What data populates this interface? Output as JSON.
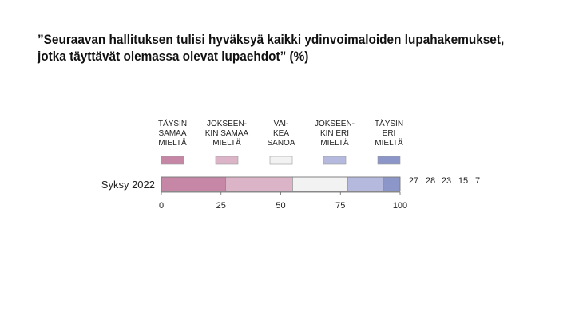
{
  "title_lines": [
    "”Seuraavan hallituksen tulisi hyväksyä kaikki ydinvoimaloiden lupahakemukset,",
    "jotka täyttävät olemassa olevat lupaehdot” (%)"
  ],
  "chart_data": {
    "type": "bar",
    "orientation": "horizontal",
    "stacked": true,
    "title": "”Seuraavan hallituksen tulisi hyväksyä kaikki ydinvoimaloiden lupahakemukset, jotka täyttävät olemassa olevat lupaehdot” (%)",
    "categories": [
      "Syksy 2022"
    ],
    "series": [
      {
        "name": "TÄYSIN SAMAA MIELTÄ",
        "label_lines": [
          "TÄYSIN",
          "SAMAA",
          "MIELTÄ"
        ],
        "values": [
          27
        ],
        "color": "#c587a5"
      },
      {
        "name": "JOKSEEN-KIN SAMAA MIELTÄ",
        "label_lines": [
          "JOKSEEN-",
          "KIN SAMAA",
          "MIELTÄ"
        ],
        "values": [
          28
        ],
        "color": "#dcb4c8"
      },
      {
        "name": "VAI-KEA SANOA",
        "label_lines": [
          "VAI-",
          "KEA",
          "SANOA"
        ],
        "values": [
          23
        ],
        "color": "#f2f2f2"
      },
      {
        "name": "JOKSEEN-KIN ERI MIELTÄ",
        "label_lines": [
          "JOKSEEN-",
          "KIN ERI",
          "MIELTÄ"
        ],
        "values": [
          15
        ],
        "color": "#b4b9dd"
      },
      {
        "name": "TÄYSIN ERI MIELTÄ",
        "label_lines": [
          "TÄYSIN",
          "ERI",
          "MIELTÄ"
        ],
        "values": [
          7
        ],
        "color": "#8d96c9"
      }
    ],
    "value_labels": [
      "27",
      "28",
      "23",
      "15",
      "7"
    ],
    "xlim": [
      0,
      100
    ],
    "xticks": [
      "0",
      "25",
      "50",
      "75",
      "100"
    ],
    "xlabel": "",
    "ylabel": "",
    "legend_position": "top",
    "grid": false
  }
}
